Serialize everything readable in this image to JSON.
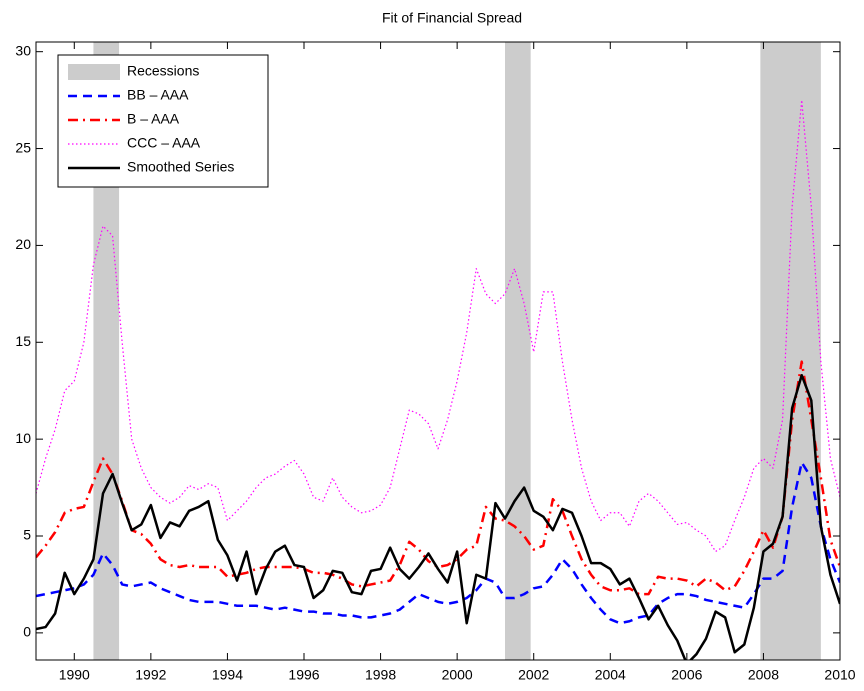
{
  "chart_data": {
    "type": "line",
    "title": "Fit of Financial Spread",
    "x": [
      1989,
      1989.25,
      1989.5,
      1989.75,
      1990,
      1990.25,
      1990.5,
      1990.75,
      1991,
      1991.25,
      1991.5,
      1991.75,
      1992,
      1992.25,
      1992.5,
      1992.75,
      1993,
      1993.25,
      1993.5,
      1993.75,
      1994,
      1994.25,
      1994.5,
      1994.75,
      1995,
      1995.25,
      1995.5,
      1995.75,
      1996,
      1996.25,
      1996.5,
      1996.75,
      1997,
      1997.25,
      1997.5,
      1997.75,
      1998,
      1998.25,
      1998.5,
      1998.75,
      1999,
      1999.25,
      1999.5,
      1999.75,
      2000,
      2000.25,
      2000.5,
      2000.75,
      2001,
      2001.25,
      2001.5,
      2001.75,
      2002,
      2002.25,
      2002.5,
      2002.75,
      2003,
      2003.25,
      2003.5,
      2003.75,
      2004,
      2004.25,
      2004.5,
      2004.75,
      2005,
      2005.25,
      2005.5,
      2005.75,
      2006,
      2006.25,
      2006.5,
      2006.75,
      2007,
      2007.25,
      2007.5,
      2007.75,
      2008,
      2008.25,
      2008.5,
      2008.75,
      2009,
      2009.25,
      2009.5,
      2009.75,
      2010
    ],
    "recessions": {
      "name": "Recessions",
      "color": "#cccccc",
      "spans": [
        [
          1990.5,
          1991.17
        ],
        [
          2001.25,
          2001.92
        ],
        [
          2007.92,
          2009.5
        ]
      ]
    },
    "series": [
      {
        "name": "BB – AAA",
        "color": "#0000ff",
        "style": "dashed",
        "values": [
          1.9,
          2.0,
          2.1,
          2.2,
          2.3,
          2.5,
          3.0,
          4.1,
          3.5,
          2.5,
          2.4,
          2.5,
          2.6,
          2.3,
          2.1,
          1.9,
          1.7,
          1.6,
          1.6,
          1.6,
          1.5,
          1.4,
          1.4,
          1.4,
          1.3,
          1.2,
          1.3,
          1.2,
          1.1,
          1.1,
          1.0,
          1.0,
          0.9,
          0.9,
          0.8,
          0.8,
          0.9,
          1.0,
          1.2,
          1.6,
          2.0,
          1.8,
          1.6,
          1.5,
          1.6,
          1.8,
          2.2,
          2.8,
          2.6,
          1.8,
          1.8,
          2.0,
          2.3,
          2.4,
          3.0,
          3.8,
          3.3,
          2.5,
          1.8,
          1.2,
          0.7,
          0.5,
          0.6,
          0.8,
          0.9,
          1.5,
          1.8,
          2.0,
          2.0,
          1.9,
          1.7,
          1.6,
          1.5,
          1.4,
          1.3,
          2.0,
          2.8,
          2.8,
          3.2,
          6.5,
          8.8,
          8.0,
          5.5,
          3.8,
          2.6
        ]
      },
      {
        "name": "B – AAA",
        "color": "#ff0000",
        "style": "dashdot",
        "values": [
          3.9,
          4.5,
          5.2,
          6.2,
          6.4,
          6.5,
          7.8,
          9.0,
          8.2,
          6.8,
          5.3,
          5.1,
          4.6,
          3.8,
          3.5,
          3.4,
          3.5,
          3.4,
          3.4,
          3.4,
          2.9,
          3.0,
          3.1,
          3.3,
          3.4,
          3.4,
          3.4,
          3.4,
          3.3,
          3.1,
          3.1,
          3.0,
          2.8,
          2.5,
          2.4,
          2.5,
          2.6,
          2.7,
          3.5,
          4.7,
          4.3,
          3.7,
          3.4,
          3.5,
          3.8,
          4.3,
          4.5,
          6.5,
          5.9,
          5.8,
          5.5,
          5.0,
          4.3,
          4.5,
          6.9,
          6.3,
          5.0,
          3.8,
          3.0,
          2.4,
          2.2,
          2.2,
          2.3,
          2.0,
          2.0,
          2.9,
          2.8,
          2.8,
          2.7,
          2.4,
          2.8,
          2.6,
          2.2,
          2.4,
          3.2,
          4.2,
          5.3,
          4.4,
          6.0,
          11.0,
          14.0,
          11.0,
          8.0,
          4.8,
          3.4
        ]
      },
      {
        "name": "CCC – AAA",
        "color": "#ff00ff",
        "style": "dotted",
        "values": [
          7.2,
          9.0,
          10.5,
          12.5,
          13.0,
          15.0,
          19.0,
          21.0,
          20.5,
          15.0,
          10.0,
          8.5,
          7.5,
          7.0,
          6.7,
          7.0,
          7.6,
          7.4,
          7.7,
          7.5,
          5.8,
          6.3,
          6.8,
          7.5,
          8.0,
          8.2,
          8.6,
          8.9,
          8.2,
          7.0,
          6.8,
          8.0,
          7.0,
          6.5,
          6.2,
          6.3,
          6.6,
          7.5,
          9.5,
          11.5,
          11.3,
          10.8,
          9.5,
          11.0,
          13.0,
          15.5,
          18.8,
          17.5,
          17.0,
          17.5,
          18.8,
          17.0,
          14.5,
          17.6,
          17.6,
          14.0,
          11.0,
          8.5,
          6.8,
          5.8,
          6.2,
          6.2,
          5.5,
          6.8,
          7.2,
          6.8,
          6.2,
          5.6,
          5.7,
          5.3,
          5.0,
          4.2,
          4.5,
          5.8,
          7.0,
          8.5,
          9.0,
          8.5,
          11.0,
          22.0,
          27.5,
          22.0,
          14.0,
          9.0,
          7.0
        ]
      },
      {
        "name": "Smoothed Series",
        "color": "#000000",
        "style": "solid",
        "values": [
          0.2,
          0.3,
          1.0,
          3.1,
          2.0,
          2.8,
          3.8,
          7.2,
          8.2,
          6.7,
          5.3,
          5.6,
          6.6,
          4.9,
          5.7,
          5.5,
          6.3,
          6.5,
          6.8,
          4.8,
          4.0,
          2.7,
          4.2,
          2.0,
          3.3,
          4.2,
          4.5,
          3.5,
          3.4,
          1.8,
          2.2,
          3.2,
          3.1,
          2.1,
          2.0,
          3.2,
          3.3,
          4.4,
          3.3,
          2.8,
          3.4,
          4.1,
          3.3,
          2.6,
          4.2,
          0.5,
          3.0,
          2.8,
          6.7,
          5.9,
          6.8,
          7.5,
          6.3,
          6.0,
          5.3,
          6.4,
          6.2,
          5.0,
          3.6,
          3.6,
          3.3,
          2.5,
          2.8,
          1.8,
          0.7,
          1.4,
          0.4,
          -0.4,
          -1.6,
          -1.1,
          -0.3,
          1.1,
          0.8,
          -1.0,
          -0.6,
          1.3,
          4.2,
          4.6,
          6.0,
          11.6,
          13.3,
          12.0,
          5.5,
          3.0,
          1.5
        ]
      }
    ],
    "xlim": [
      1989,
      2010
    ],
    "xticks": [
      1990,
      1992,
      1994,
      1996,
      1998,
      2000,
      2002,
      2004,
      2006,
      2008,
      2010
    ],
    "ylim": [
      -1.4,
      30.5
    ],
    "yticks": [
      0,
      5,
      10,
      15,
      20,
      25,
      30
    ],
    "legend": "upper-left"
  }
}
